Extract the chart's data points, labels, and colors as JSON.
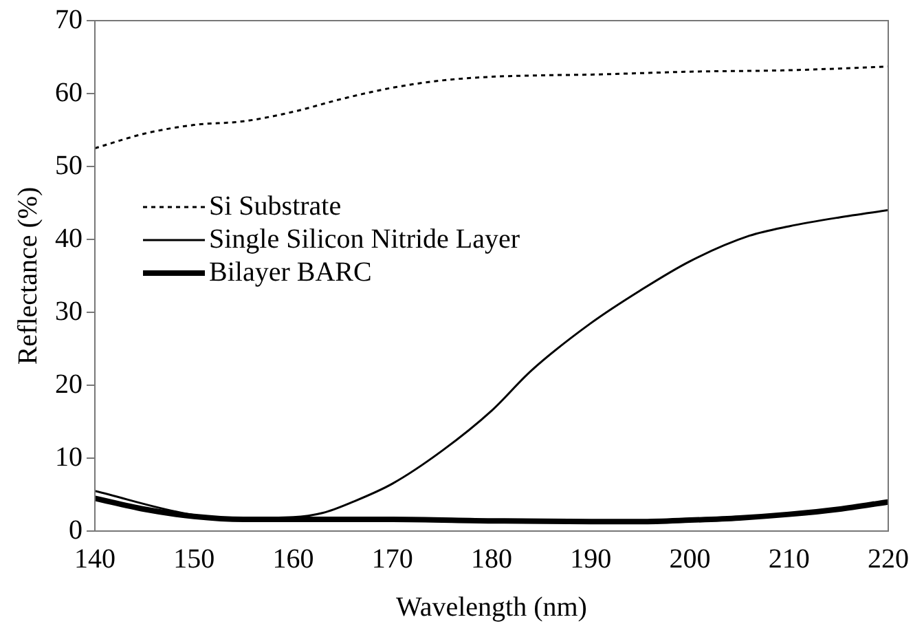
{
  "chart_data": {
    "type": "line",
    "xlabel": "Wavelength (nm)",
    "ylabel": "Reflectance (%)",
    "xlim": [
      140,
      220
    ],
    "xticks": [
      140,
      150,
      160,
      170,
      180,
      190,
      200,
      210,
      220
    ],
    "ylim": [
      0,
      70
    ],
    "yticks": [
      0,
      10,
      20,
      30,
      40,
      50,
      60,
      70
    ],
    "grid": false,
    "legend": "left",
    "marker": "none",
    "series": [
      {
        "name": "Si Substrate",
        "color": "#000000",
        "line_style": "dotted",
        "x": [
          140,
          145,
          150,
          155,
          160,
          165,
          170,
          175,
          180,
          185,
          190,
          195,
          200,
          210,
          220
        ],
        "values": [
          52.5,
          54.5,
          55.7,
          56.2,
          57.5,
          59.3,
          60.8,
          61.8,
          62.3,
          62.5,
          62.6,
          62.8,
          63.0,
          63.2,
          63.7
        ]
      },
      {
        "name": "Single Silicon Nitride Layer",
        "color": "#000000",
        "line_style": "solid",
        "x": [
          140,
          150,
          155,
          160,
          163,
          166,
          170,
          175,
          180,
          184,
          190,
          195,
          200,
          206,
          210,
          215,
          220
        ],
        "values": [
          5.5,
          2.2,
          1.8,
          1.9,
          2.5,
          4,
          6.5,
          11,
          16.5,
          22,
          28.5,
          33,
          37,
          40.5,
          41.8,
          43,
          44
        ]
      },
      {
        "name": "Bilayer BARC",
        "color": "#000000",
        "line_style": "solid",
        "x": [
          140,
          145,
          150,
          155,
          160,
          170,
          180,
          190,
          195,
          200,
          205,
          210,
          215,
          220
        ],
        "values": [
          4.5,
          3,
          2,
          1.6,
          1.6,
          1.6,
          1.4,
          1.3,
          1.3,
          1.5,
          1.8,
          2.3,
          3,
          4
        ]
      }
    ]
  }
}
